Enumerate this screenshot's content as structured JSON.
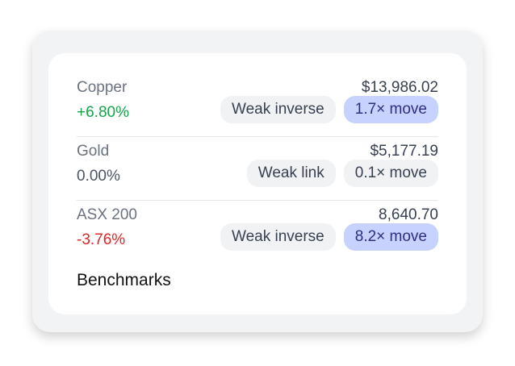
{
  "rows": [
    {
      "name": "Copper",
      "price": "$13,986.02",
      "change": "+6.80%",
      "change_tone": "up",
      "tags": [
        "Weak inverse",
        "1.7× move"
      ],
      "highlight": true
    },
    {
      "name": "Gold",
      "price": "$5,177.19",
      "change": "0.00%",
      "change_tone": "flat",
      "tags": [
        "Weak link",
        "0.1× move"
      ],
      "highlight": false
    },
    {
      "name": "ASX 200",
      "price": "8,640.70",
      "change": "-3.76%",
      "change_tone": "down",
      "tags": [
        "Weak inverse",
        "8.2× move"
      ],
      "highlight": true
    }
  ],
  "footer": "Benchmarks"
}
